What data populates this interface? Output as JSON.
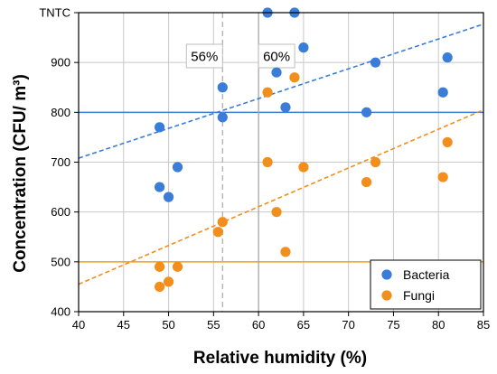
{
  "chart_data": {
    "type": "scatter",
    "xlabel": "Relative humidity (%)",
    "ylabel": "Concentration (CFU/ m³)",
    "xlim": [
      40,
      85
    ],
    "ylim": [
      400,
      1000
    ],
    "x_ticks": [
      "40",
      "45",
      "50",
      "55",
      "60",
      "65",
      "70",
      "75",
      "80",
      "85"
    ],
    "y_ticks": [
      "400",
      "500",
      "600",
      "700",
      "800",
      "900",
      "TNTC"
    ],
    "grid": true,
    "legend_position": "bottom-right",
    "series": [
      {
        "name": "Bacteria",
        "color": "#3a7dd8",
        "points": [
          [
            49,
            770
          ],
          [
            49,
            650
          ],
          [
            50,
            630
          ],
          [
            51,
            690
          ],
          [
            56,
            790
          ],
          [
            56,
            850
          ],
          [
            61,
            1000
          ],
          [
            62,
            880
          ],
          [
            63,
            810
          ],
          [
            64,
            1000
          ],
          [
            65,
            930
          ],
          [
            72,
            800
          ],
          [
            73,
            900
          ],
          [
            80.5,
            840
          ],
          [
            81,
            910
          ]
        ],
        "trend": [
          [
            40,
            708
          ],
          [
            85,
            977
          ]
        ]
      },
      {
        "name": "Fungi",
        "color": "#f28e1c",
        "points": [
          [
            49,
            490
          ],
          [
            49,
            450
          ],
          [
            50,
            460
          ],
          [
            51,
            490
          ],
          [
            55.5,
            560
          ],
          [
            56,
            580
          ],
          [
            61,
            840
          ],
          [
            61,
            700
          ],
          [
            62,
            600
          ],
          [
            63,
            520
          ],
          [
            64,
            870
          ],
          [
            65,
            690
          ],
          [
            72,
            660
          ],
          [
            73,
            700
          ],
          [
            80.5,
            670
          ],
          [
            81,
            740
          ]
        ],
        "trend": [
          [
            40,
            455
          ],
          [
            85,
            805
          ]
        ]
      }
    ],
    "reference_lines": [
      {
        "axis": "y",
        "value": 800,
        "color": "#3a7dd8"
      },
      {
        "axis": "y",
        "value": 500,
        "color": "#f0a020"
      },
      {
        "axis": "x",
        "value": 56,
        "style": "dashed",
        "label": "56%"
      },
      {
        "axis": "x",
        "value": 60,
        "style": "solid",
        "label": "60%"
      }
    ]
  }
}
